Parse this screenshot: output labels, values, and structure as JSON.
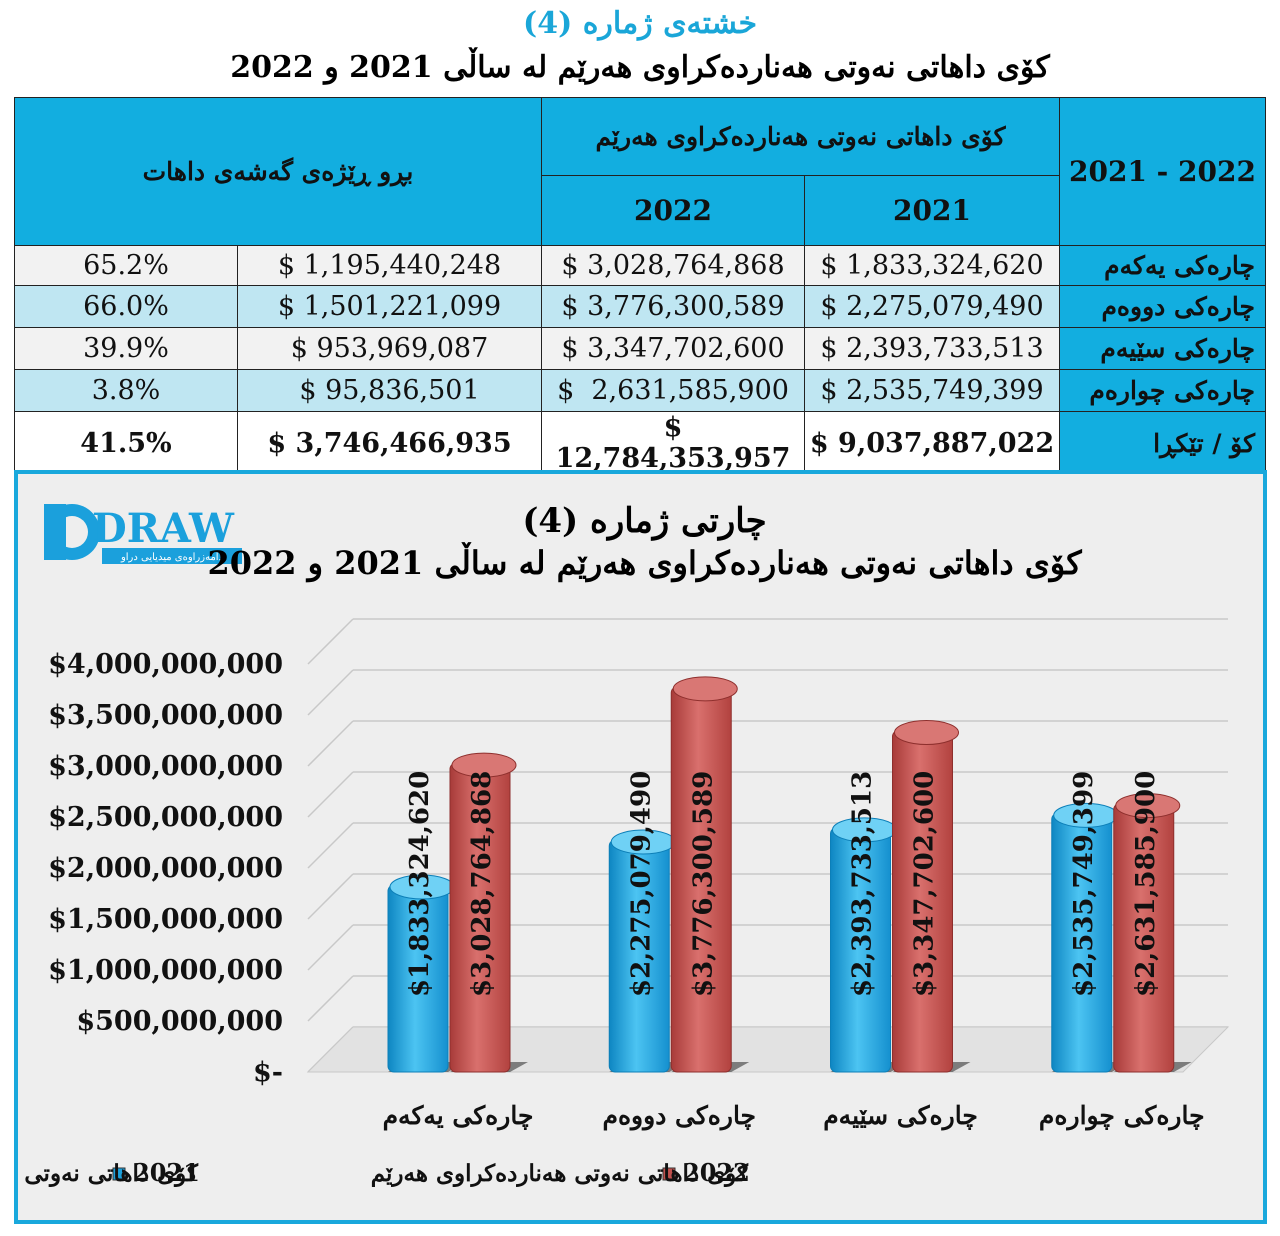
{
  "table": {
    "title": "خشتەی ژمارە (4)",
    "subtitle": "کۆی داهاتی نەوتی هەناردەکراوی هەرێم لە ساڵی 2021 و 2022",
    "header_period": "2021 - 2022",
    "header_group": "کۆی داهاتی نەوتی هەناردەکراوی هەرێم",
    "header_2021": "2021",
    "header_2022": "2022",
    "header_growth": "بڕو ڕێژەی گەشەی داهات",
    "rows": [
      {
        "label": "چارەکی یەکەم",
        "v2021": "$ 1,833,324,620",
        "v2022": "$ 3,028,764,868",
        "diff": "$ 1,195,440,248",
        "pct": "65.2%"
      },
      {
        "label": "چارەکی دووەم",
        "v2021": "$ 2,275,079,490",
        "v2022": "$ 3,776,300,589",
        "diff": "$ 1,501,221,099",
        "pct": "66.0%"
      },
      {
        "label": "چارەکی سێیەم",
        "v2021": "$ 2,393,733,513",
        "v2022": "$ 3,347,702,600",
        "diff": "$ 953,969,087",
        "pct": "39.9%"
      },
      {
        "label": "چارەکی چوارەم",
        "v2021": "$ 2,535,749,399",
        "v2022": "$  2,631,585,900",
        "diff": "$ 95,836,501",
        "pct": "3.8%"
      }
    ],
    "total": {
      "label": "کۆ / تێکڕا",
      "v2021": "$ 9,037,887,022",
      "v2022": "$ 12,784,353,957",
      "diff": "$ 3,746,466,935",
      "pct": "41.5%"
    }
  },
  "logo": {
    "text": "DRAW",
    "tagline": "دامەزراوەی میدیایی دراو"
  },
  "colors": {
    "blue": "#12aee0",
    "red": "#c0504d",
    "border": "#19a8dc"
  },
  "chart_data": {
    "type": "bar",
    "title": "چارتی ژمارە (4)",
    "subtitle": "کۆی داهاتی نەوتی هەناردەکراوی هەرێم لە ساڵی 2021 و 2022",
    "categories": [
      "چارەکی یەکەم",
      "چارەکی دووەم",
      "چارەکی سێیەم",
      "چارەکی چوارەم"
    ],
    "series": [
      {
        "name": "کۆی داهاتی نەوتی هەناردەکراوی هەرێم 2021",
        "color": "#1ba0dc",
        "values": [
          1833324620,
          2275079490,
          2393733513,
          2535749399
        ],
        "labels": [
          "$1,833,324,620",
          "$2,275,079,490",
          "$2,393,733,513",
          "$2,535,749,399"
        ]
      },
      {
        "name": "کۆی داهاتی نەوتی هەناردەکراوی هەرێم 2022",
        "color": "#c0504d",
        "values": [
          3028764868,
          3776300589,
          3347702600,
          2631585900
        ],
        "labels": [
          "$3,028,764,868",
          "$3,776,300,589",
          "$3,347,702,600",
          "$2,631,585,900"
        ]
      }
    ],
    "y_ticks": [
      0,
      500000000,
      1000000000,
      1500000000,
      2000000000,
      2500000000,
      3000000000,
      3500000000,
      4000000000
    ],
    "y_tick_labels": [
      "$-",
      "$500,000,000",
      "$1,000,000,000",
      "$1,500,000,000",
      "$2,000,000,000",
      "$2,500,000,000",
      "$3,000,000,000",
      "$3,500,000,000",
      "$4,000,000,000"
    ],
    "ylim": [
      0,
      4000000000
    ],
    "grid": true,
    "legend_position": "bottom",
    "legend": {
      "year_2021": "2021",
      "year_2022": "2022",
      "text": "کۆی داهاتی نەوتی هەناردەکراوی هەرێم"
    }
  }
}
